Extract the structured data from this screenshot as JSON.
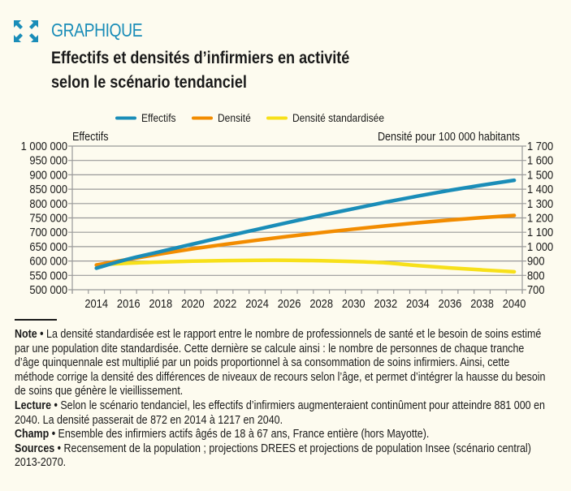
{
  "header": {
    "icon": "expand-arrows-icon",
    "kicker": "GRAPHIQUE",
    "title_line1": "Effectifs et densités d’infirmiers en activité",
    "title_line2": "selon le scénario tendanciel"
  },
  "colors": {
    "accent": "#1a8db8",
    "effectifs": "#1a8db8",
    "densite": "#f28c00",
    "densite_std": "#f7e01a",
    "grid": "#999999",
    "background": "#fdfbef"
  },
  "chart_data": {
    "type": "line",
    "title": "Effectifs et densités d’infirmiers en activité selon le scénario tendanciel",
    "legend": [
      "Effectifs",
      "Densité",
      "Densité standardisée"
    ],
    "legend_position": "top",
    "xlabel": "",
    "ylabel_left": "Effectifs",
    "ylabel_right": "Densité pour 100 000 habitants",
    "x_ticks": [
      "2014",
      "2016",
      "2018",
      "2020",
      "2022",
      "2024",
      "2026",
      "2028",
      "2030",
      "2032",
      "2034",
      "2036",
      "2038",
      "2040"
    ],
    "y_left_ticks": [
      "1 000 000",
      "950 000",
      "900 000",
      "850 000",
      "800 000",
      "750 000",
      "700 000",
      "650 000",
      "600 000",
      "550 000",
      "500 000"
    ],
    "y_right_ticks": [
      "1 700",
      "1 600",
      "1 500",
      "1 400",
      "1 300",
      "1 200",
      "1 100",
      "1 000",
      "900",
      "800",
      "700"
    ],
    "ylim_left": [
      500000,
      1000000
    ],
    "ylim_right": [
      700,
      1700
    ],
    "xlim": [
      2013,
      2040
    ],
    "grid": true,
    "x": [
      2014,
      2016,
      2018,
      2020,
      2022,
      2024,
      2026,
      2028,
      2030,
      2032,
      2034,
      2036,
      2038,
      2040
    ],
    "series": [
      {
        "name": "Effectifs",
        "axis": "left",
        "values": [
          575000,
          607000,
          633000,
          659000,
          685000,
          710000,
          735000,
          759000,
          782000,
          805000,
          826000,
          846000,
          864000,
          881000
        ]
      },
      {
        "name": "Densité",
        "axis": "right",
        "values": [
          872,
          912,
          950,
          985,
          1016,
          1045,
          1072,
          1098,
          1122,
          1145,
          1166,
          1185,
          1202,
          1217
        ]
      },
      {
        "name": "Densité standardisée",
        "axis": "right",
        "values": [
          872,
          885,
          893,
          899,
          903,
          905,
          905,
          902,
          896,
          887,
          868,
          852,
          838,
          825
        ]
      }
    ]
  },
  "notes": {
    "note_label": "Note •",
    "note_text": " La densité standardisée est le rapport entre le nombre de professionnels de santé et le besoin de soins estimé par une population dite standardisée. Cette dernière se calcule ainsi : le nombre de personnes de chaque tranche d’âge quinquennale est multiplié par un poids proportionnel à sa consommation de soins infirmiers. Ainsi, cette méthode corrige la densité des différences de niveaux de recours selon l’âge, et permet d’intégrer la hausse du besoin de soins que génère le vieillissement.",
    "lecture_label": "Lecture •",
    "lecture_text": " Selon le scénario tendanciel, les effectifs d’infirmiers augmenteraient continûment pour atteindre 881 000 en 2040. La densité passerait de 872 en 2014 à 1217 en 2040.",
    "champ_label": "Champ •",
    "champ_text": " Ensemble des infirmiers actifs âgés de 18 à 67 ans, France entière (hors Mayotte).",
    "sources_label": "Sources •",
    "sources_text": " Recensement de la population ; projections DREES et projections de population Insee (scénario central) 2013-2070."
  }
}
